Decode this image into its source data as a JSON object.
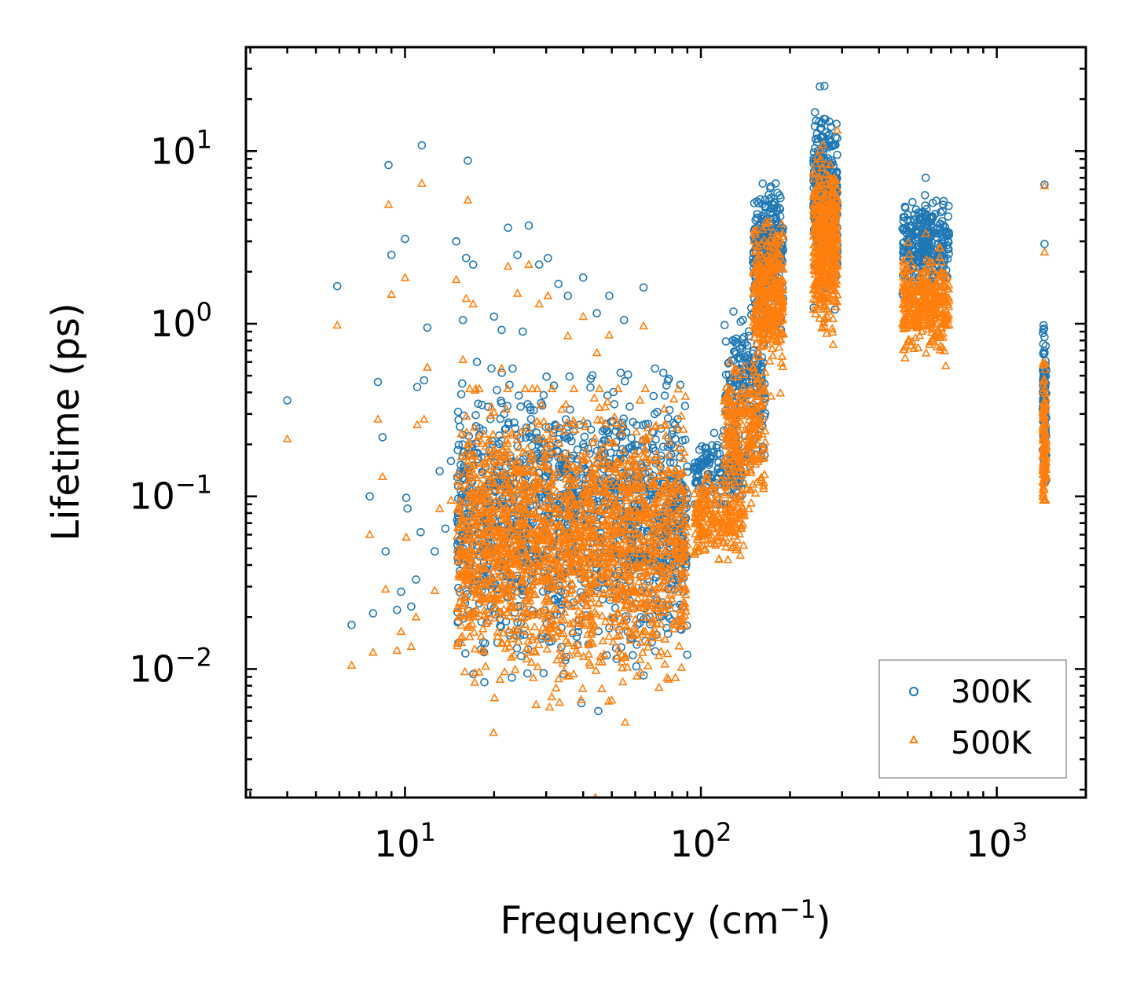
{
  "chart_data": {
    "type": "scatter",
    "title": "",
    "xlabel": "Frequency (cm",
    "xlabel_sup": "−1",
    "xlabel_close": ")",
    "ylabel": "Lifetime (ps)",
    "xscale": "log",
    "yscale": "log",
    "xlim": [
      2.9,
      2000
    ],
    "ylim": [
      0.0018,
      40
    ],
    "xticks": [
      {
        "value": 10,
        "base": "10",
        "exp": "1"
      },
      {
        "value": 100,
        "base": "10",
        "exp": "2"
      },
      {
        "value": 1000,
        "base": "10",
        "exp": "3"
      }
    ],
    "yticks": [
      {
        "value": 0.01,
        "base": "10",
        "exp": "−2"
      },
      {
        "value": 0.1,
        "base": "10",
        "exp": "−1"
      },
      {
        "value": 1,
        "base": "10",
        "exp": "0"
      },
      {
        "value": 10,
        "base": "10",
        "exp": "1"
      }
    ],
    "legend_position": "lower-right",
    "series": [
      {
        "name": "300K",
        "marker": "circle",
        "color": "#1f77b4",
        "points": [
          [
            4.0,
            0.36
          ],
          [
            5.9,
            1.65
          ],
          [
            6.6,
            0.018
          ],
          [
            7.6,
            0.1
          ],
          [
            7.8,
            0.021
          ],
          [
            8.1,
            0.46
          ],
          [
            8.4,
            0.22
          ],
          [
            8.6,
            0.048
          ],
          [
            8.8,
            8.3
          ],
          [
            9.0,
            2.5
          ],
          [
            9.4,
            0.022
          ],
          [
            9.7,
            0.028
          ],
          [
            10.0,
            3.1
          ],
          [
            10.1,
            0.098
          ],
          [
            10.2,
            0.085
          ],
          [
            10.5,
            0.023
          ],
          [
            10.9,
            0.033
          ],
          [
            11.0,
            0.43
          ],
          [
            11.3,
            0.062
          ],
          [
            11.4,
            10.8
          ],
          [
            11.6,
            0.47
          ],
          [
            11.9,
            0.95
          ],
          [
            12.6,
            0.048
          ],
          [
            13.1,
            0.14
          ],
          [
            13.7,
            0.065
          ],
          [
            14.3,
            0.16
          ],
          [
            14.9,
            3.0
          ],
          [
            15.5,
            0.39
          ],
          [
            15.7,
            1.05
          ],
          [
            16.1,
            2.4
          ],
          [
            16.3,
            8.8
          ],
          [
            17.0,
            2.2
          ],
          [
            17.5,
            0.6
          ],
          [
            19.1,
            0.33
          ],
          [
            19.6,
            0.55
          ],
          [
            20.0,
            1.1
          ],
          [
            21.2,
            0.92
          ],
          [
            22.3,
            3.6
          ],
          [
            23.1,
            0.55
          ],
          [
            24.0,
            2.5
          ],
          [
            25.0,
            0.9
          ],
          [
            26.2,
            3.7
          ],
          [
            28.4,
            2.2
          ],
          [
            30.4,
            2.4
          ],
          [
            33.0,
            1.7
          ],
          [
            35.5,
            1.45
          ],
          [
            40.0,
            1.85
          ],
          [
            44.5,
            1.15
          ],
          [
            49.0,
            1.45
          ],
          [
            55.0,
            1.05
          ],
          [
            64.0,
            1.62
          ],
          [
            70.0,
            0.55
          ],
          [
            78.0,
            0.48
          ],
          [
            85.0,
            0.017
          ],
          [
            1450,
            6.4
          ],
          [
            1450,
            2.9
          ]
        ]
      },
      {
        "name": "500K",
        "marker": "triangle",
        "color": "#ff7f0e",
        "points": [
          [
            4.0,
            0.215
          ],
          [
            5.9,
            0.98
          ],
          [
            6.6,
            0.0105
          ],
          [
            7.6,
            0.06
          ],
          [
            7.8,
            0.0125
          ],
          [
            8.1,
            0.28
          ],
          [
            8.4,
            0.13
          ],
          [
            8.6,
            0.029
          ],
          [
            8.8,
            4.9
          ],
          [
            9.0,
            1.48
          ],
          [
            9.4,
            0.0128
          ],
          [
            9.7,
            0.0165
          ],
          [
            10.0,
            1.85
          ],
          [
            10.1,
            0.058
          ],
          [
            10.5,
            0.0135
          ],
          [
            10.9,
            0.02
          ],
          [
            11.0,
            0.26
          ],
          [
            11.4,
            6.5
          ],
          [
            11.6,
            0.28
          ],
          [
            11.9,
            0.56
          ],
          [
            12.6,
            0.0285
          ],
          [
            13.1,
            0.085
          ],
          [
            14.3,
            0.095
          ],
          [
            14.9,
            1.8
          ],
          [
            15.5,
            0.23
          ],
          [
            15.7,
            0.62
          ],
          [
            16.1,
            1.4
          ],
          [
            16.3,
            5.2
          ],
          [
            17.0,
            1.3
          ],
          [
            19.6,
            0.33
          ],
          [
            21.2,
            0.55
          ],
          [
            22.3,
            2.15
          ],
          [
            24.0,
            1.5
          ],
          [
            26.2,
            2.2
          ],
          [
            28.4,
            1.3
          ],
          [
            30.4,
            1.45
          ],
          [
            35.5,
            0.85
          ],
          [
            40.0,
            1.1
          ],
          [
            44.5,
            0.68
          ],
          [
            49.0,
            0.86
          ],
          [
            44.0,
            0.0018
          ],
          [
            64.0,
            0.97
          ],
          [
            86.0,
            0.0102
          ],
          [
            1450,
            6.3
          ],
          [
            1450,
            2.6
          ]
        ]
      }
    ],
    "clusters": [
      {
        "series": 0,
        "x": [
          15,
          90
        ],
        "ycenter": 0.075,
        "yspread": 0.55,
        "n": 1500,
        "ymin": 0.0035,
        "ymax": 0.52
      },
      {
        "series": 0,
        "x": [
          95,
          140
        ],
        "ycenter": 0.14,
        "yspread": 0.16,
        "n": 160,
        "ymin": 0.09,
        "ymax": 0.4
      },
      {
        "series": 0,
        "x": [
          120,
          165
        ],
        "ycenter": 0.45,
        "yspread": 0.3,
        "n": 200,
        "ymin": 0.15,
        "ymax": 1.4
      },
      {
        "series": 0,
        "x": [
          150,
          190
        ],
        "ycenter": 2.5,
        "yspread": 0.3,
        "n": 300,
        "ymin": 0.8,
        "ymax": 6.5
      },
      {
        "series": 0,
        "x": [
          240,
          290
        ],
        "ycenter": 5.5,
        "yspread": 0.35,
        "n": 400,
        "ymin": 1.0,
        "ymax": 24
      },
      {
        "series": 0,
        "x": [
          480,
          690
        ],
        "ycenter": 2.8,
        "yspread": 0.2,
        "n": 300,
        "ymin": 0.7,
        "ymax": 7.0
      },
      {
        "series": 0,
        "x": [
          1430,
          1470
        ],
        "ycenter": 0.4,
        "yspread": 0.35,
        "n": 90,
        "ymin": 0.12,
        "ymax": 1.5
      },
      {
        "series": 1,
        "x": [
          15,
          90
        ],
        "ycenter": 0.055,
        "yspread": 0.55,
        "n": 1900,
        "ymin": 0.002,
        "ymax": 0.42
      },
      {
        "series": 1,
        "x": [
          95,
          140
        ],
        "ycenter": 0.075,
        "yspread": 0.16,
        "n": 220,
        "ymin": 0.043,
        "ymax": 0.2
      },
      {
        "series": 1,
        "x": [
          120,
          165
        ],
        "ycenter": 0.25,
        "yspread": 0.3,
        "n": 250,
        "ymin": 0.08,
        "ymax": 0.9
      },
      {
        "series": 1,
        "x": [
          150,
          190
        ],
        "ycenter": 1.5,
        "yspread": 0.3,
        "n": 350,
        "ymin": 0.3,
        "ymax": 3.9
      },
      {
        "series": 1,
        "x": [
          240,
          290
        ],
        "ycenter": 3.0,
        "yspread": 0.35,
        "n": 450,
        "ymin": 0.57,
        "ymax": 14
      },
      {
        "series": 1,
        "x": [
          480,
          690
        ],
        "ycenter": 1.3,
        "yspread": 0.2,
        "n": 350,
        "ymin": 0.4,
        "ymax": 4.4
      },
      {
        "series": 1,
        "x": [
          1430,
          1470
        ],
        "ycenter": 0.2,
        "yspread": 0.3,
        "n": 120,
        "ymin": 0.095,
        "ymax": 0.9
      }
    ]
  }
}
